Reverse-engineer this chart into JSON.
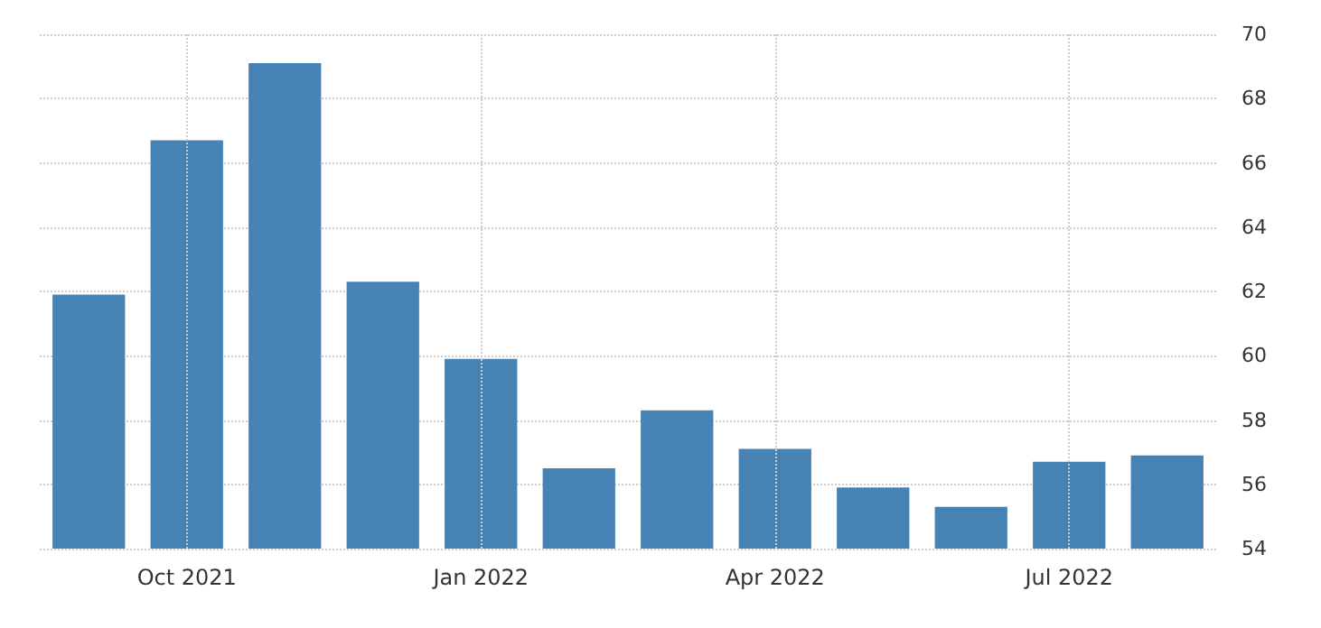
{
  "chart_data": {
    "type": "bar",
    "categories": [
      null,
      "Oct 2021",
      null,
      null,
      "Jan 2022",
      null,
      null,
      "Apr 2022",
      null,
      null,
      "Jul 2022",
      null
    ],
    "values": [
      61.9,
      66.7,
      69.1,
      62.3,
      59.9,
      56.5,
      58.3,
      57.1,
      55.9,
      55.3,
      56.7,
      56.9
    ],
    "color": "#4682b4",
    "ylim": [
      54,
      70
    ],
    "yticks": [
      54,
      56,
      58,
      60,
      62,
      64,
      66,
      68,
      70
    ],
    "grid": true
  }
}
